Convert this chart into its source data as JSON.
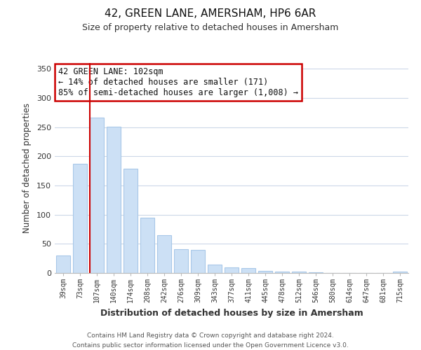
{
  "title": "42, GREEN LANE, AMERSHAM, HP6 6AR",
  "subtitle": "Size of property relative to detached houses in Amersham",
  "xlabel": "Distribution of detached houses by size in Amersham",
  "ylabel": "Number of detached properties",
  "bar_labels": [
    "39sqm",
    "73sqm",
    "107sqm",
    "140sqm",
    "174sqm",
    "208sqm",
    "242sqm",
    "276sqm",
    "309sqm",
    "343sqm",
    "377sqm",
    "411sqm",
    "445sqm",
    "478sqm",
    "512sqm",
    "546sqm",
    "580sqm",
    "614sqm",
    "647sqm",
    "681sqm",
    "715sqm"
  ],
  "bar_heights": [
    30,
    187,
    267,
    251,
    179,
    95,
    65,
    41,
    40,
    14,
    10,
    8,
    4,
    3,
    2,
    1,
    0,
    0,
    0,
    0,
    2
  ],
  "bar_color": "#cce0f5",
  "bar_edge_color": "#a8c8e8",
  "vline_color": "#cc0000",
  "annotation_lines": [
    "← 14% of detached houses are smaller (171)",
    "85% of semi-detached houses are larger (1,008) →"
  ],
  "annotation_title": "42 GREEN LANE: 102sqm",
  "annotation_box_color": "#ffffff",
  "annotation_box_edge_color": "#cc0000",
  "ylim": [
    0,
    360
  ],
  "yticks": [
    0,
    50,
    100,
    150,
    200,
    250,
    300,
    350
  ],
  "footer_lines": [
    "Contains HM Land Registry data © Crown copyright and database right 2024.",
    "Contains public sector information licensed under the Open Government Licence v3.0."
  ],
  "background_color": "#ffffff",
  "grid_color": "#ccd8e8"
}
